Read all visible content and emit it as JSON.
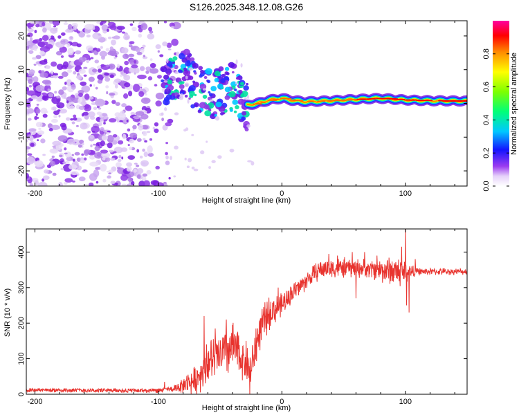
{
  "figure": {
    "title": "S126.2025.348.12.08.G26"
  },
  "chart_data": [
    {
      "type": "heatmap",
      "name": "spectrogram",
      "xlabel": "Height of straight line (km)",
      "ylabel": "Frequency (Hz)",
      "xlim": [
        -207,
        150
      ],
      "ylim": [
        -24.5,
        24.5
      ],
      "xticks": [
        -200,
        -100,
        0,
        100
      ],
      "xtick_labels": [
        "-200",
        "-100",
        "0",
        "100"
      ],
      "yticks": [
        -20,
        -10,
        0,
        10,
        20
      ],
      "ytick_labels": [
        "-20",
        "-10",
        "0",
        "10",
        "20"
      ],
      "colorbar": {
        "label": "Normalized spectral amplitude",
        "range": [
          0,
          1
        ],
        "ticks": [
          0,
          0.2,
          0.4,
          0.6,
          0.8
        ],
        "tick_labels": [
          "0.0",
          "0.2",
          "0.4",
          "0.6",
          "0.8"
        ]
      },
      "features": {
        "noise_region_x": [
          -207,
          -95
        ],
        "transition_region_x": [
          -97,
          -28
        ],
        "transition_trend_hz": [
          [
            -95,
            5
          ],
          [
            -80,
            10
          ],
          [
            -70,
            5
          ],
          [
            -55,
            3
          ],
          [
            -40,
            5
          ],
          [
            -30,
            -1
          ]
        ],
        "signal_track_hz": [
          [
            -28,
            -0.5
          ],
          [
            -20,
            0
          ],
          [
            -10,
            1
          ],
          [
            0,
            1.5
          ],
          [
            10,
            0.8
          ],
          [
            20,
            0.5
          ],
          [
            40,
            0.8
          ],
          [
            60,
            1.2
          ],
          [
            80,
            1.5
          ],
          [
            100,
            1.0
          ],
          [
            120,
            0.8
          ],
          [
            150,
            0.7
          ]
        ]
      }
    },
    {
      "type": "line",
      "name": "snr",
      "xlabel": "Height of straight line (km)",
      "ylabel": "SNR (10 * v/v)",
      "xlim": [
        -207,
        150
      ],
      "ylim": [
        0,
        465
      ],
      "xticks": [
        -200,
        -100,
        0,
        100
      ],
      "xtick_labels": [
        "-200",
        "-100",
        "0",
        "100"
      ],
      "yticks": [
        0,
        100,
        200,
        300,
        400
      ],
      "ytick_labels": [
        "0",
        "100",
        "200",
        "300",
        "400"
      ],
      "color": "#e8332e",
      "trend": [
        [
          -207,
          12
        ],
        [
          -100,
          10
        ],
        [
          -88,
          15
        ],
        [
          -80,
          25
        ],
        [
          -70,
          40
        ],
        [
          -60,
          90
        ],
        [
          -50,
          110
        ],
        [
          -40,
          130
        ],
        [
          -32,
          100
        ],
        [
          -25,
          70
        ],
        [
          -18,
          180
        ],
        [
          -10,
          230
        ],
        [
          0,
          250
        ],
        [
          10,
          290
        ],
        [
          20,
          320
        ],
        [
          30,
          350
        ],
        [
          40,
          355
        ],
        [
          60,
          355
        ],
        [
          80,
          350
        ],
        [
          100,
          345
        ],
        [
          120,
          345
        ],
        [
          150,
          345
        ]
      ],
      "noise_amplitude": [
        [
          -207,
          6
        ],
        [
          -90,
          8
        ],
        [
          -80,
          25
        ],
        [
          -60,
          70
        ],
        [
          -40,
          90
        ],
        [
          -30,
          60
        ],
        [
          -20,
          70
        ],
        [
          -10,
          55
        ],
        [
          0,
          40
        ],
        [
          20,
          30
        ],
        [
          40,
          35
        ],
        [
          70,
          30
        ],
        [
          95,
          55
        ],
        [
          105,
          25
        ],
        [
          110,
          12
        ],
        [
          150,
          10
        ]
      ],
      "spikes": [
        [
          -95,
          35
        ],
        [
          -76,
          55
        ],
        [
          -63,
          220
        ],
        [
          -61,
          140
        ],
        [
          -54,
          185
        ],
        [
          -45,
          210
        ],
        [
          -40,
          195
        ],
        [
          -35,
          165
        ],
        [
          -29,
          150
        ],
        [
          -26,
          0
        ],
        [
          -21,
          185
        ],
        [
          -16,
          240
        ],
        [
          -12,
          260
        ],
        [
          -3,
          300
        ],
        [
          0,
          280
        ],
        [
          5,
          290
        ],
        [
          38,
          395
        ],
        [
          45,
          390
        ],
        [
          57,
          400
        ],
        [
          60,
          270
        ],
        [
          67,
          400
        ],
        [
          77,
          390
        ],
        [
          97,
          415
        ],
        [
          100,
          465
        ],
        [
          101,
          250
        ],
        [
          103,
          230
        ],
        [
          108,
          380
        ]
      ]
    }
  ]
}
